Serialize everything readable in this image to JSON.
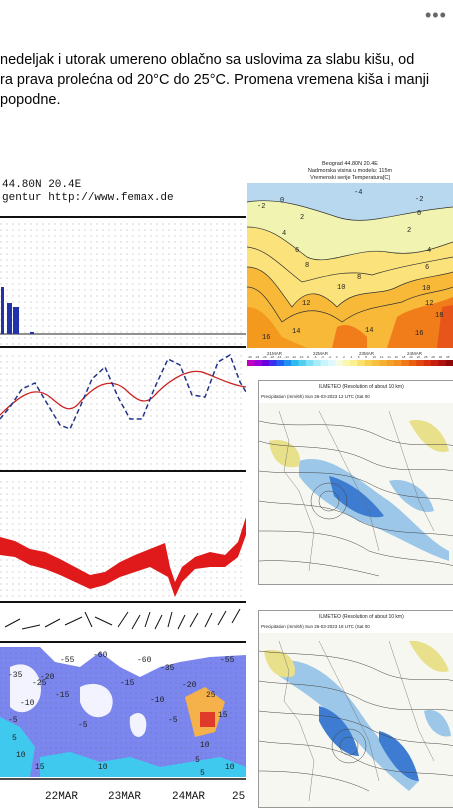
{
  "post": {
    "lines": [
      "nedeljak i utorak umereno oblačno sa uslovima za slabu kišu, od",
      "ra prava prolećna od 20°C do 25°C. Promena vremena kiša i manji",
      "popodne."
    ]
  },
  "left_chart": {
    "header_line1": "44.80N 20.4E",
    "header_line2": "gentur http://www.femax.de",
    "date_labels": [
      "22MAR",
      "23MAR",
      "24MAR",
      "25"
    ],
    "contour_labels": [
      "-55",
      "-60",
      "-60",
      "-35",
      "-35",
      "-55",
      "-25",
      "-20",
      "-20",
      "-15",
      "-15",
      "-10",
      "-10",
      "-5",
      "-5",
      "-5",
      "5",
      "25",
      "15",
      "10",
      "10",
      "10",
      "5",
      "15",
      "10",
      "5"
    ]
  },
  "right_top": {
    "title_line1": "Beograd  44.80N  20.4E",
    "title_line2": "Nadmorska visina u modelu: 115m",
    "title_line3": "Vremenski serije Temperatura[C]",
    "contour_labels": [
      "-4",
      "-2",
      "0",
      "2",
      "4",
      "6",
      "8",
      "10",
      "12",
      "14",
      "16",
      "18",
      "-2",
      "0",
      "2",
      "4",
      "6",
      "8",
      "10",
      "12",
      "14",
      "16"
    ],
    "date_labels": [
      "21MAR",
      "22MAR",
      "23MAR",
      "24MAR"
    ],
    "colorbar_labels": [
      "-26",
      "-23",
      "-20",
      "-18",
      "-16",
      "-14",
      "-12",
      "-10",
      "-8",
      "-6",
      "-4",
      "-2",
      "0",
      "2",
      "4",
      "6",
      "8",
      "10",
      "12",
      "14",
      "16",
      "18",
      "20",
      "22",
      "25",
      "28",
      "30",
      "35"
    ]
  },
  "map1": {
    "title": "ILMETEO  (Resolution of about 10 km)",
    "subtitle": "Precipitation (mm/6h)   Sun 26-03-2023 12 UTC (Sat 00"
  },
  "map2": {
    "title": "ILMETEO  (Resolution of about 10 km)",
    "subtitle": "Precipitation (mm/6h)   Sun 26-03-2023 18 UTC (Sat 00"
  },
  "icons": {
    "more": "more-horizontal-icon"
  }
}
